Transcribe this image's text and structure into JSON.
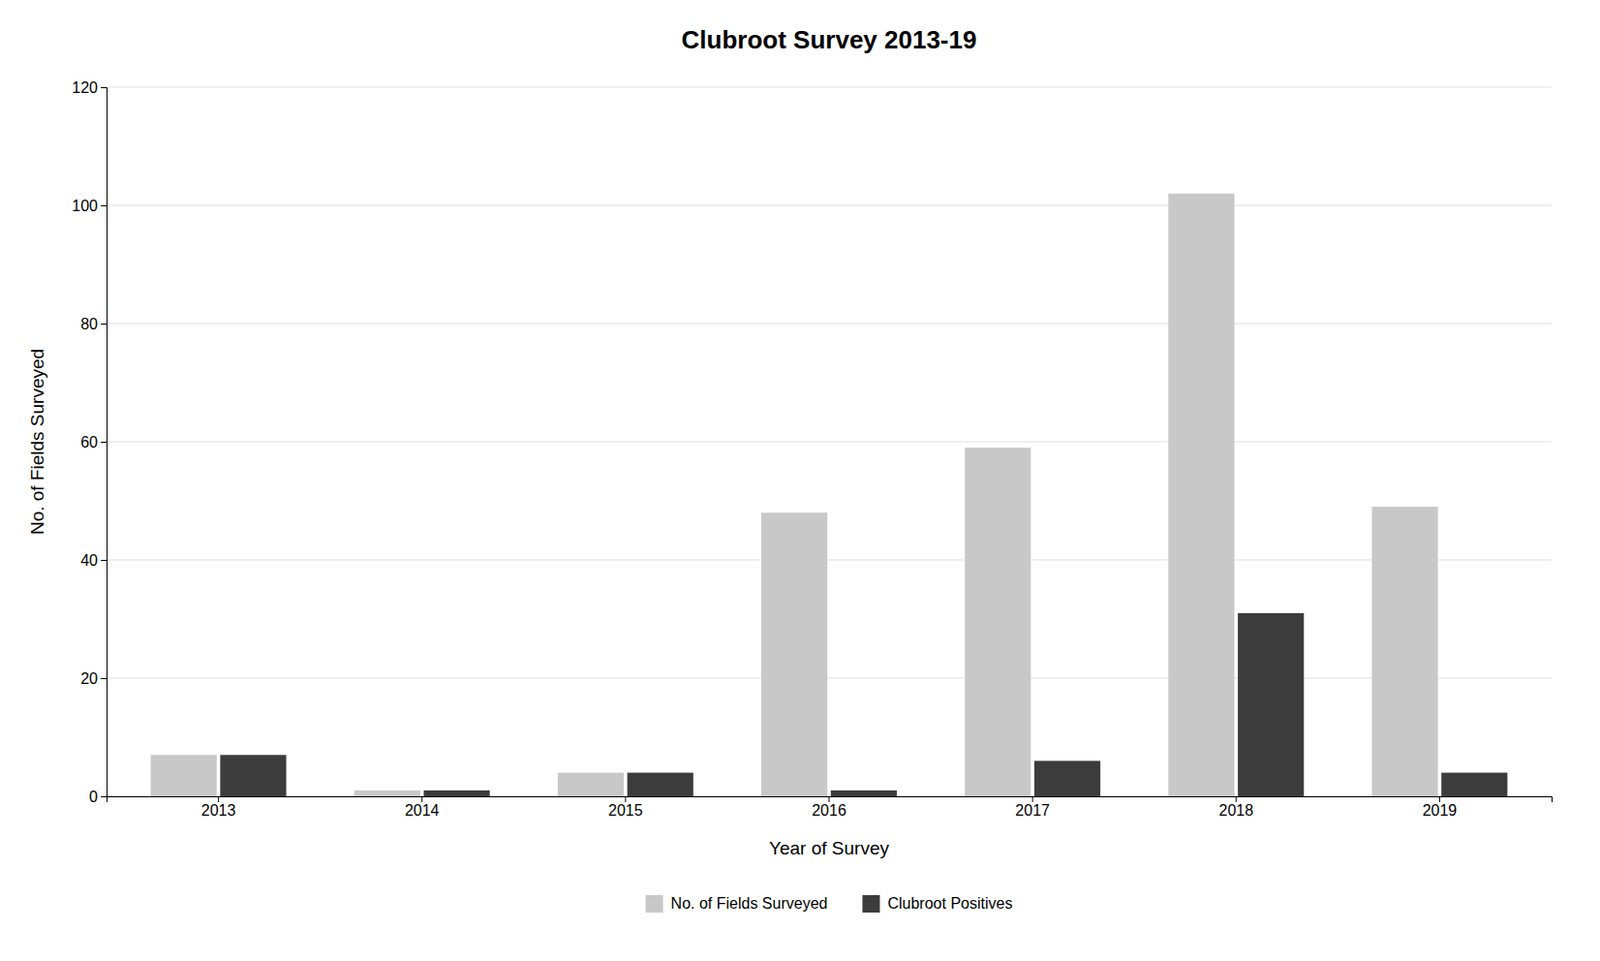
{
  "chart_data": {
    "type": "bar",
    "title": "Clubroot Survey 2013-19",
    "xlabel": "Year of Survey",
    "ylabel": "No. of Fields Surveyed",
    "categories": [
      "2013",
      "2014",
      "2015",
      "2016",
      "2017",
      "2018",
      "2019"
    ],
    "series": [
      {
        "name": "No. of Fields Surveyed",
        "color": "#c8c8c8",
        "values": [
          7,
          1,
          4,
          48,
          59,
          102,
          49
        ]
      },
      {
        "name": "Clubroot Positives",
        "color": "#3c3c3c",
        "values": [
          7,
          1,
          4,
          1,
          6,
          31,
          4
        ]
      }
    ],
    "ylim": [
      0,
      120
    ],
    "yticks": [
      0,
      20,
      40,
      60,
      80,
      100,
      120
    ],
    "grid": true,
    "legend": "bottom"
  }
}
